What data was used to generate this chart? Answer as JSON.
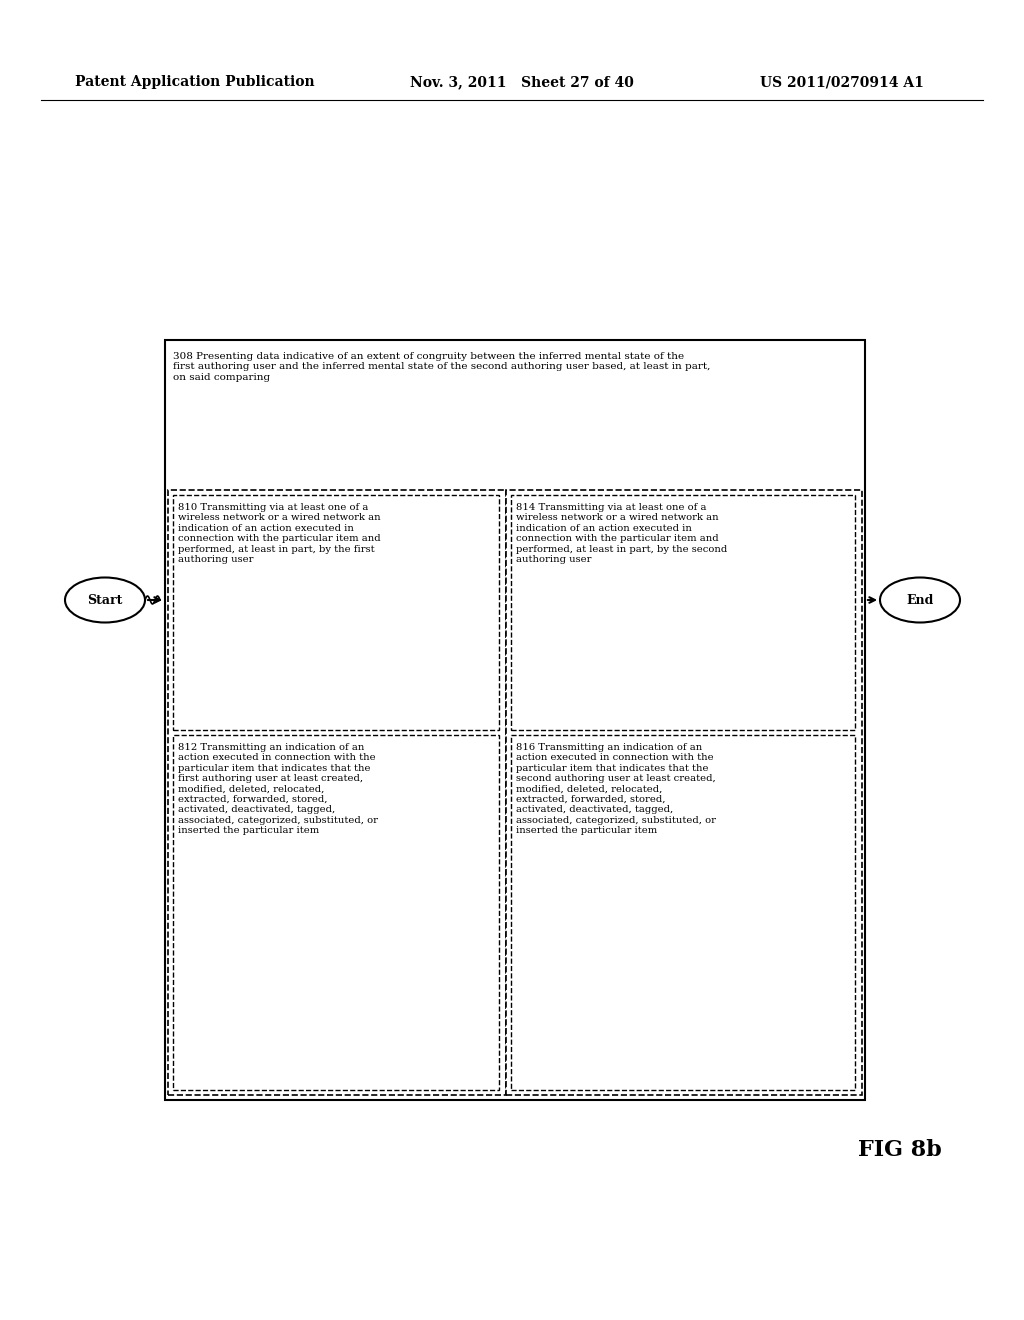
{
  "header_left": "Patent Application Publication",
  "header_mid": "Nov. 3, 2011   Sheet 27 of 40",
  "header_right": "US 2011/0270914 A1",
  "fig_label": "FIG 8b",
  "start_label": "Start",
  "end_label": "End",
  "box308_text": "308 Presenting data indicative of an extent of congruity between the inferred mental state of the\nfirst authoring user and the inferred mental state of the second authoring user based, at least in part,\non said comparing",
  "box810_text": "810 Transmitting via at least one of a\nwireless network or a wired network an\nindication of an action executed in\nconnection with the particular item and\nperformed, at least in part, by the first\nauthoring user",
  "box812_text": "812 Transmitting an indication of an\naction executed in connection with the\nparticular item that indicates that the\nfirst authoring user at least created,\nmodified, deleted, relocated,\nextracted, forwarded, stored,\nactivated, deactivated, tagged,\nassociated, categorized, substituted, or\ninserted the particular item",
  "box814_text": "814 Transmitting via at least one of a\nwireless network or a wired network an\nindication of an action executed in\nconnection with the particular item and\nperformed, at least in part, by the second\nauthoring user",
  "box816_text": "816 Transmitting an indication of an\naction executed in connection with the\nparticular item that indicates that the\nsecond authoring user at least created,\nmodified, deleted, relocated,\nextracted, forwarded, stored,\nactivated, deactivated, tagged,\nassociated, categorized, substituted, or\ninserted the particular item",
  "bg_color": "#ffffff",
  "text_color": "#000000",
  "box_edge_color": "#000000",
  "dashed_color": "#000000"
}
